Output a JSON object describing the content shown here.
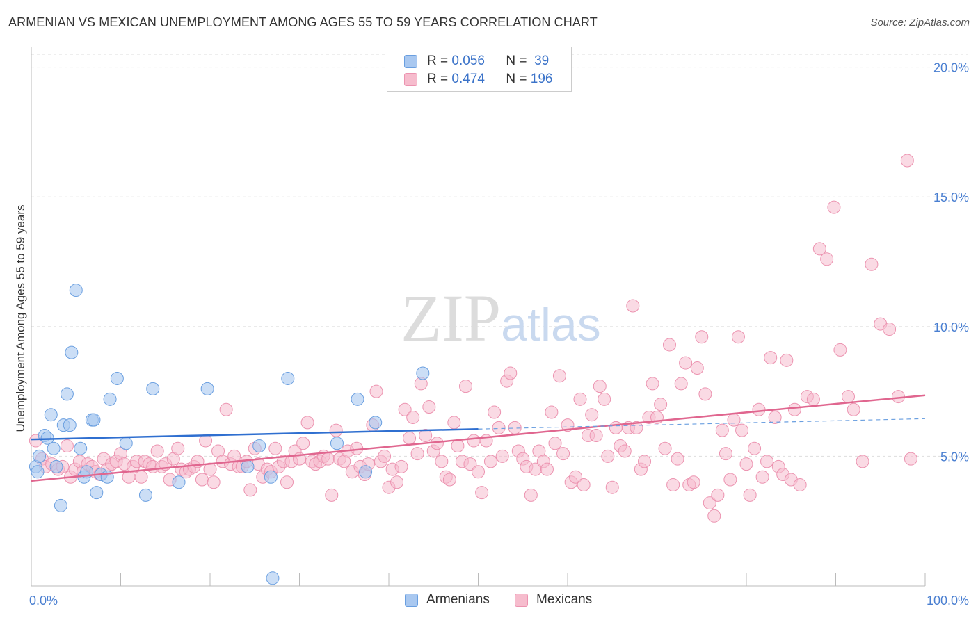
{
  "header": {
    "title": "ARMENIAN VS MEXICAN UNEMPLOYMENT AMONG AGES 55 TO 59 YEARS CORRELATION CHART",
    "source": "Source: ZipAtlas.com"
  },
  "watermark": "ZIPatlas",
  "legend": {
    "rows": [
      {
        "r_label": "R =",
        "r_value": "0.056",
        "n_label": "N =",
        "n_value": "39"
      },
      {
        "r_label": "R =",
        "r_value": "0.474",
        "n_label": "N =",
        "n_value": "196"
      }
    ]
  },
  "bottom_legend": {
    "armenians": "Armenians",
    "mexicans": "Mexicans"
  },
  "colors": {
    "armenians_fill": "#a9c8f0",
    "armenians_stroke": "#6a9fe0",
    "armenians_line": "#2f6fd0",
    "mexicans_fill": "#f6bccd",
    "mexicans_stroke": "#ec93b0",
    "mexicans_line": "#e0668f",
    "tick_text": "#4a7fd1",
    "grid": "#dddddd"
  },
  "chart_data": {
    "type": "scatter",
    "title": "ARMENIAN VS MEXICAN UNEMPLOYMENT AMONG AGES 55 TO 59 YEARS CORRELATION CHART",
    "xlabel": "",
    "ylabel": "Unemployment Among Ages 55 to 59 years",
    "xlim": [
      0,
      100
    ],
    "ylim": [
      0,
      20.5
    ],
    "x_tick_labels": [
      "0.0%",
      "100.0%"
    ],
    "y_ticks": [
      5,
      10,
      15,
      20
    ],
    "y_tick_labels": [
      "5.0%",
      "10.0%",
      "15.0%",
      "20.0%"
    ],
    "grid": "horizontal dashed",
    "legend_position": "top-center",
    "series": [
      {
        "name": "Armenians",
        "trend": {
          "x0": 0,
          "y0": 5.65,
          "x1": 50,
          "y1": 6.05,
          "dashed_to": 100,
          "dashed_y": 6.45
        },
        "points": [
          [
            0.5,
            4.6
          ],
          [
            0.7,
            4.4
          ],
          [
            0.9,
            5.0
          ],
          [
            1.5,
            5.8
          ],
          [
            1.8,
            5.7
          ],
          [
            2.2,
            6.6
          ],
          [
            2.5,
            5.3
          ],
          [
            2.8,
            4.6
          ],
          [
            3.3,
            3.1
          ],
          [
            3.6,
            6.2
          ],
          [
            4.0,
            7.4
          ],
          [
            4.3,
            6.2
          ],
          [
            4.5,
            9.0
          ],
          [
            5.0,
            11.4
          ],
          [
            5.5,
            5.3
          ],
          [
            5.9,
            4.2
          ],
          [
            6.2,
            4.4
          ],
          [
            6.8,
            6.4
          ],
          [
            7.0,
            6.4
          ],
          [
            7.3,
            3.6
          ],
          [
            7.8,
            4.3
          ],
          [
            8.5,
            4.2
          ],
          [
            8.8,
            7.2
          ],
          [
            9.6,
            8.0
          ],
          [
            10.6,
            5.5
          ],
          [
            12.8,
            3.5
          ],
          [
            13.6,
            7.6
          ],
          [
            16.5,
            4.0
          ],
          [
            19.7,
            7.6
          ],
          [
            24.2,
            4.6
          ],
          [
            25.5,
            5.4
          ],
          [
            26.8,
            4.2
          ],
          [
            27.0,
            0.3
          ],
          [
            28.7,
            8.0
          ],
          [
            34.2,
            5.5
          ],
          [
            36.5,
            7.2
          ],
          [
            37.4,
            4.4
          ],
          [
            38.5,
            6.3
          ],
          [
            43.8,
            8.2
          ]
        ]
      },
      {
        "name": "Mexicans",
        "trend": {
          "x0": 0,
          "y0": 4.05,
          "x1": 100,
          "y1": 7.35
        },
        "points": [
          [
            0.5,
            5.6
          ],
          [
            1.2,
            4.9
          ],
          [
            1.6,
            4.6
          ],
          [
            2.3,
            4.7
          ],
          [
            3.0,
            4.5
          ],
          [
            3.5,
            4.6
          ],
          [
            4.0,
            5.4
          ],
          [
            4.4,
            4.2
          ],
          [
            4.9,
            4.5
          ],
          [
            5.4,
            4.8
          ],
          [
            5.8,
            4.4
          ],
          [
            6.3,
            4.7
          ],
          [
            6.8,
            4.6
          ],
          [
            7.2,
            4.4
          ],
          [
            7.7,
            4.3
          ],
          [
            8.1,
            4.9
          ],
          [
            8.5,
            4.5
          ],
          [
            9.0,
            4.7
          ],
          [
            9.5,
            4.8
          ],
          [
            10.0,
            5.1
          ],
          [
            10.4,
            4.7
          ],
          [
            10.9,
            4.2
          ],
          [
            11.4,
            4.6
          ],
          [
            11.8,
            4.8
          ],
          [
            12.3,
            4.2
          ],
          [
            12.7,
            4.8
          ],
          [
            13.2,
            4.7
          ],
          [
            13.6,
            4.6
          ],
          [
            14.1,
            5.2
          ],
          [
            14.6,
            4.6
          ],
          [
            15.0,
            4.7
          ],
          [
            15.5,
            4.1
          ],
          [
            15.9,
            4.9
          ],
          [
            16.4,
            5.3
          ],
          [
            16.8,
            4.5
          ],
          [
            17.3,
            4.4
          ],
          [
            17.7,
            4.5
          ],
          [
            18.2,
            4.6
          ],
          [
            18.6,
            4.8
          ],
          [
            19.1,
            4.1
          ],
          [
            19.5,
            5.6
          ],
          [
            20.0,
            4.5
          ],
          [
            20.4,
            4.0
          ],
          [
            20.9,
            5.2
          ],
          [
            21.4,
            4.8
          ],
          [
            21.8,
            6.8
          ],
          [
            22.3,
            4.7
          ],
          [
            22.7,
            5.0
          ],
          [
            23.2,
            4.6
          ],
          [
            23.6,
            4.6
          ],
          [
            24.1,
            4.8
          ],
          [
            24.5,
            3.7
          ],
          [
            25.0,
            5.3
          ],
          [
            25.4,
            4.7
          ],
          [
            25.9,
            4.2
          ],
          [
            26.4,
            4.5
          ],
          [
            26.8,
            4.4
          ],
          [
            27.3,
            5.3
          ],
          [
            27.7,
            4.6
          ],
          [
            28.2,
            4.8
          ],
          [
            28.6,
            4.0
          ],
          [
            29.1,
            4.8
          ],
          [
            29.5,
            5.2
          ],
          [
            30.0,
            4.9
          ],
          [
            30.4,
            5.5
          ],
          [
            30.9,
            6.3
          ],
          [
            31.4,
            4.8
          ],
          [
            31.8,
            4.7
          ],
          [
            32.3,
            4.8
          ],
          [
            32.7,
            5.0
          ],
          [
            33.2,
            4.9
          ],
          [
            33.6,
            3.5
          ],
          [
            34.1,
            6.0
          ],
          [
            34.5,
            4.9
          ],
          [
            35.0,
            4.8
          ],
          [
            35.4,
            5.2
          ],
          [
            35.9,
            4.4
          ],
          [
            36.4,
            5.3
          ],
          [
            36.8,
            4.6
          ],
          [
            37.3,
            4.3
          ],
          [
            37.7,
            4.7
          ],
          [
            38.2,
            6.2
          ],
          [
            38.6,
            7.5
          ],
          [
            39.1,
            4.8
          ],
          [
            39.5,
            5.0
          ],
          [
            40.0,
            3.8
          ],
          [
            40.4,
            4.5
          ],
          [
            40.9,
            4.0
          ],
          [
            41.4,
            4.6
          ],
          [
            41.8,
            6.8
          ],
          [
            42.3,
            5.7
          ],
          [
            42.7,
            6.5
          ],
          [
            43.2,
            5.1
          ],
          [
            43.6,
            7.8
          ],
          [
            44.1,
            5.8
          ],
          [
            44.5,
            6.9
          ],
          [
            45.0,
            5.2
          ],
          [
            45.4,
            5.5
          ],
          [
            45.9,
            4.8
          ],
          [
            46.4,
            4.2
          ],
          [
            46.8,
            4.1
          ],
          [
            47.3,
            6.3
          ],
          [
            47.7,
            5.4
          ],
          [
            48.2,
            4.8
          ],
          [
            48.6,
            7.7
          ],
          [
            49.1,
            4.7
          ],
          [
            49.5,
            5.6
          ],
          [
            50.0,
            4.4
          ],
          [
            50.4,
            3.6
          ],
          [
            50.9,
            5.6
          ],
          [
            51.4,
            4.8
          ],
          [
            51.8,
            6.7
          ],
          [
            52.3,
            6.1
          ],
          [
            52.7,
            5.0
          ],
          [
            53.2,
            7.9
          ],
          [
            53.6,
            8.2
          ],
          [
            54.1,
            6.1
          ],
          [
            54.5,
            5.2
          ],
          [
            55.0,
            4.9
          ],
          [
            55.4,
            4.6
          ],
          [
            55.9,
            3.5
          ],
          [
            56.4,
            4.5
          ],
          [
            56.8,
            5.2
          ],
          [
            57.3,
            4.8
          ],
          [
            57.7,
            4.5
          ],
          [
            58.2,
            6.7
          ],
          [
            58.6,
            5.5
          ],
          [
            59.1,
            8.1
          ],
          [
            59.5,
            5.1
          ],
          [
            60.0,
            6.2
          ],
          [
            60.4,
            4.0
          ],
          [
            60.9,
            4.2
          ],
          [
            61.4,
            7.2
          ],
          [
            61.8,
            3.9
          ],
          [
            62.3,
            5.8
          ],
          [
            62.7,
            6.6
          ],
          [
            63.2,
            5.8
          ],
          [
            63.6,
            7.7
          ],
          [
            64.1,
            7.2
          ],
          [
            64.5,
            5.0
          ],
          [
            65.0,
            3.8
          ],
          [
            65.4,
            6.1
          ],
          [
            65.9,
            5.4
          ],
          [
            66.4,
            5.2
          ],
          [
            66.8,
            6.1
          ],
          [
            67.3,
            10.8
          ],
          [
            67.7,
            6.1
          ],
          [
            68.2,
            4.5
          ],
          [
            68.6,
            4.8
          ],
          [
            69.1,
            6.5
          ],
          [
            69.5,
            7.8
          ],
          [
            70.0,
            6.5
          ],
          [
            70.4,
            7.0
          ],
          [
            70.9,
            5.3
          ],
          [
            71.4,
            9.3
          ],
          [
            71.8,
            3.9
          ],
          [
            72.3,
            4.9
          ],
          [
            72.7,
            7.8
          ],
          [
            73.2,
            8.6
          ],
          [
            73.6,
            3.9
          ],
          [
            74.1,
            4.0
          ],
          [
            74.5,
            8.4
          ],
          [
            75.0,
            9.6
          ],
          [
            75.4,
            7.4
          ],
          [
            75.9,
            3.2
          ],
          [
            76.4,
            2.7
          ],
          [
            76.8,
            3.5
          ],
          [
            77.3,
            6.0
          ],
          [
            77.7,
            5.1
          ],
          [
            78.2,
            4.1
          ],
          [
            78.6,
            6.4
          ],
          [
            79.1,
            9.6
          ],
          [
            79.5,
            6.0
          ],
          [
            80.0,
            4.7
          ],
          [
            80.4,
            3.5
          ],
          [
            80.9,
            5.3
          ],
          [
            81.4,
            6.8
          ],
          [
            81.8,
            4.2
          ],
          [
            82.3,
            4.8
          ],
          [
            82.7,
            8.8
          ],
          [
            83.2,
            6.5
          ],
          [
            83.6,
            4.6
          ],
          [
            84.1,
            4.3
          ],
          [
            84.5,
            8.7
          ],
          [
            85.0,
            4.1
          ],
          [
            85.4,
            6.8
          ],
          [
            86.0,
            3.9
          ],
          [
            86.8,
            7.3
          ],
          [
            87.5,
            7.2
          ],
          [
            88.2,
            13.0
          ],
          [
            89.0,
            12.6
          ],
          [
            89.8,
            14.6
          ],
          [
            90.5,
            9.1
          ],
          [
            91.4,
            7.3
          ],
          [
            92.0,
            6.8
          ],
          [
            93.0,
            4.8
          ],
          [
            94.0,
            12.4
          ],
          [
            95.0,
            10.1
          ],
          [
            96.0,
            9.9
          ],
          [
            97.0,
            7.3
          ],
          [
            98.0,
            16.4
          ],
          [
            98.4,
            4.9
          ]
        ]
      }
    ]
  }
}
